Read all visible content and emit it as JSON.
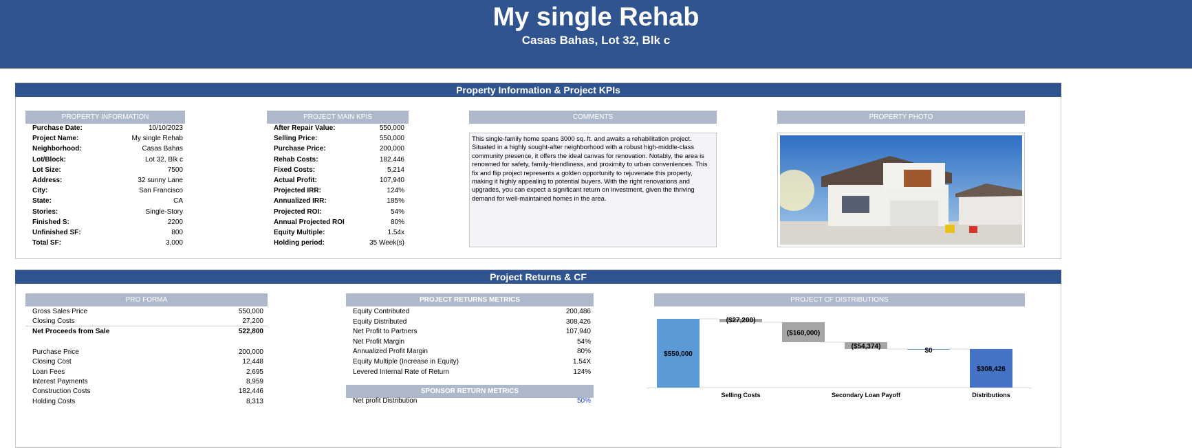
{
  "header": {
    "title": "My single Rehab",
    "subtitle": "Casas Bahas, Lot 32, Blk c"
  },
  "section1": {
    "title": "Property Information & Project KPIs",
    "property_info": {
      "title": "PROPERTY INFORMATION",
      "rows": [
        {
          "k": "Purchase Date:",
          "v": "10/10/2023"
        },
        {
          "k": "Project Name:",
          "v": "My single Rehab"
        },
        {
          "k": "Neighborhood:",
          "v": "Casas Bahas"
        },
        {
          "k": "Lot/Block:",
          "v": "Lot 32, Blk c"
        },
        {
          "k": "Lot Size:",
          "v": "7500"
        },
        {
          "k": "Address:",
          "v": "32 sunny Lane"
        },
        {
          "k": "City:",
          "v": "San Francisco"
        },
        {
          "k": "State:",
          "v": "CA"
        },
        {
          "k": "Stories:",
          "v": "Single-Story"
        },
        {
          "k": "Finished S:",
          "v": "2200"
        },
        {
          "k": "Unfinished SF:",
          "v": "800"
        },
        {
          "k": "Total SF:",
          "v": "3,000"
        }
      ]
    },
    "kpis": {
      "title": "PROJECT MAIN KPIS",
      "rows": [
        {
          "k": "After Repair Value:",
          "v": "550,000"
        },
        {
          "k": "Selling Price:",
          "v": "550,000"
        },
        {
          "k": "Purchase Price:",
          "v": "200,000"
        },
        {
          "k": "Rehab Costs:",
          "v": "182,446"
        },
        {
          "k": "Fixed Costs:",
          "v": "5,214"
        },
        {
          "k": "Actual  Profit:",
          "v": "107,940"
        },
        {
          "k": "Projected IRR:",
          "v": "124%"
        },
        {
          "k": "Annualized IRR:",
          "v": "185%"
        },
        {
          "k": "Projected ROI:",
          "v": "54%"
        },
        {
          "k": "Annual Projected ROI",
          "v": "80%"
        },
        {
          "k": "Equity Multiple:",
          "v": "1.54x"
        },
        {
          "k": "Holding period:",
          "v": "35 Week(s)"
        }
      ]
    },
    "comments": {
      "title": "COMMENTS",
      "text": "This single-family home spans 3000 sq. ft. and awaits a rehabilitation project. Situated in a highly sought-after neighborhood with a robust high-middle-class community presence, it offers the ideal canvas for renovation. Notably, the area is renowned for safety, family-friendliness, and proximity to urban conveniences. This fix and flip project represents a golden opportunity to rejuvenate this property, making it highly appealing to potential buyers. With the right renovations and upgrades, you can expect a significant return on investment, given the thriving demand for well-maintained homes in the area."
    },
    "photo": {
      "title": "PROPERTY PHOTO"
    }
  },
  "section2": {
    "title": "Project Returns & CF",
    "pro_forma": {
      "title": "PRO FORMA",
      "rows_top": [
        {
          "k": "Gross Sales Price",
          "v": "550,000"
        },
        {
          "k": "Closing Costs",
          "v": "27,200"
        }
      ],
      "net": {
        "k": "Net Proceeds from Sale",
        "v": "522,800"
      },
      "rows_bottom": [
        {
          "k": "Purchase Price",
          "v": "200,000"
        },
        {
          "k": "Closing Cost",
          "v": "12,448"
        },
        {
          "k": "Loan Fees",
          "v": "2,695"
        },
        {
          "k": "Interest Payments",
          "v": "8,959"
        },
        {
          "k": "Construction Costs",
          "v": "182,446"
        },
        {
          "k": "Holding Costs",
          "v": "8,313"
        }
      ]
    },
    "returns": {
      "title": "PROJECT RETURNS METRICS",
      "rows": [
        {
          "k": "Equity Contributed",
          "v": "200,486"
        },
        {
          "k": "Equity Distributed",
          "v": "308,426"
        },
        {
          "k": "Net Profit to Partners",
          "v": "107,940"
        },
        {
          "k": "Net Profit Margin",
          "v": "54%"
        },
        {
          "k": "Annualized Profit Margin",
          "v": "80%"
        },
        {
          "k": "Equity Multiple (Increase in Equity)",
          "v": "1.54X"
        },
        {
          "k": "Levered Internal Rate of Return",
          "v": "124%"
        }
      ]
    },
    "sponsor": {
      "title": "SPONSOR RETURN METRICS",
      "rows": [
        {
          "k": "Net profit Distribution",
          "v": "50%"
        }
      ]
    },
    "cf_title": "PROJECT CF DISTRIBUTIONS"
  },
  "chart_data": {
    "type": "waterfall",
    "categories": [
      "",
      "Selling Costs",
      "",
      "Secondary Loan Payoff",
      "",
      "Distributions"
    ],
    "values": [
      550000,
      -27200,
      -160000,
      -54374,
      0,
      308426
    ],
    "labels": [
      "$550,000",
      "($27,200)",
      "($160,000)",
      "($54,374)",
      "$0",
      "$308,426"
    ],
    "colors": {
      "start": "#5b9bd5",
      "decrease": "#a5a5a5",
      "total": "#4472c4"
    }
  }
}
